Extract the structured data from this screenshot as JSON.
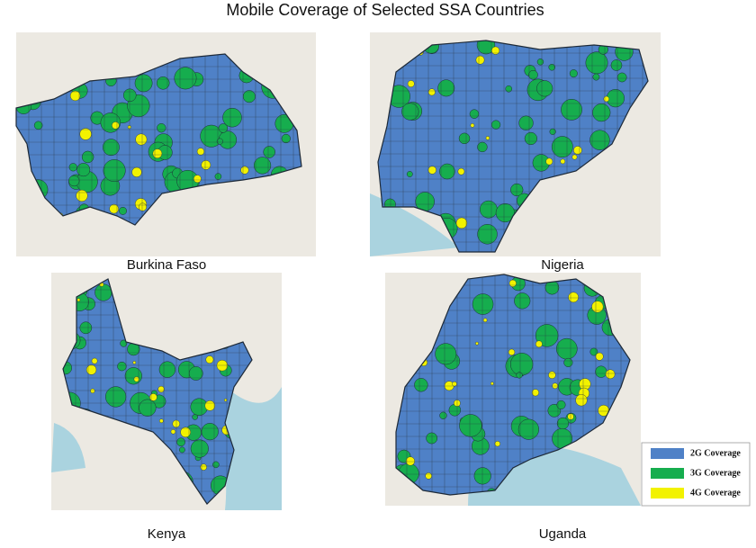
{
  "title": "Mobile Coverage of Selected SSA Countries",
  "panels": [
    {
      "label": "Burkina Faso"
    },
    {
      "label": "Nigeria"
    },
    {
      "label": "Kenya"
    },
    {
      "label": "Uganda"
    }
  ],
  "legend": [
    {
      "label": "2G Coverage",
      "color": "#4f81c7"
    },
    {
      "label": "3G Coverage",
      "color": "#16ad4e"
    },
    {
      "label": "4G Coverage",
      "color": "#f2f200"
    }
  ]
}
